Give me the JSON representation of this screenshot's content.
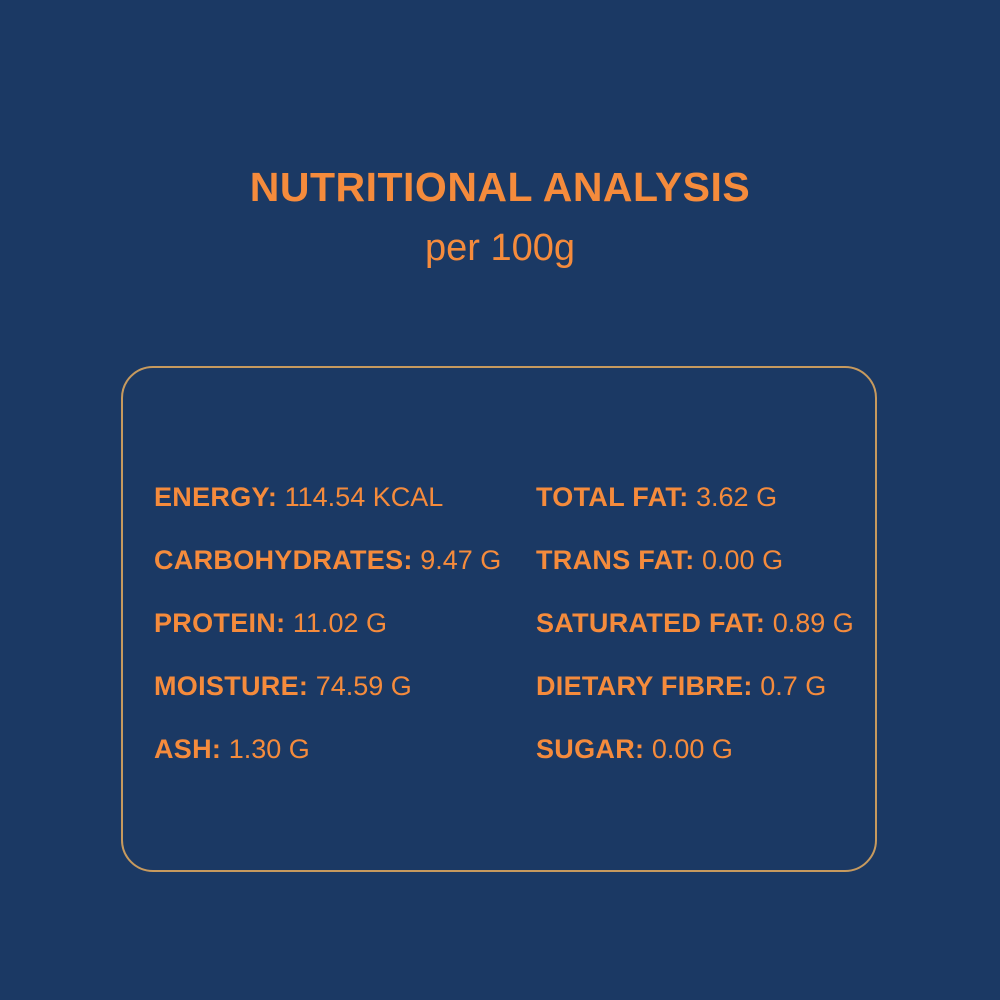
{
  "header": {
    "title": "NUTRITIONAL ANALYSIS",
    "subtitle": "per 100g"
  },
  "nutrients": {
    "left": [
      {
        "label": "ENERGY:",
        "value": " 114.54 KCAL"
      },
      {
        "label": "CARBOHYDRATES:",
        "value": "9.47 G"
      },
      {
        "label": "PROTEIN:",
        "value": "11.02 G"
      },
      {
        "label": "MOISTURE:",
        "value": "74.59 G"
      },
      {
        "label": "ASH:",
        "value": "1.30 G"
      }
    ],
    "right": [
      {
        "label": "TOTAL FAT:",
        "value": "3.62 G"
      },
      {
        "label": "TRANS FAT:",
        "value": "0.00 G"
      },
      {
        "label": "SATURATED FAT:",
        "value": "0.89 G"
      },
      {
        "label": "DIETARY FIBRE:",
        "value": "0.7 G"
      },
      {
        "label": "SUGAR:",
        "value": "0.00 G"
      }
    ]
  },
  "colors": {
    "background": "#1b3964",
    "text": "#f58b3c",
    "border": "#c79a5e"
  }
}
